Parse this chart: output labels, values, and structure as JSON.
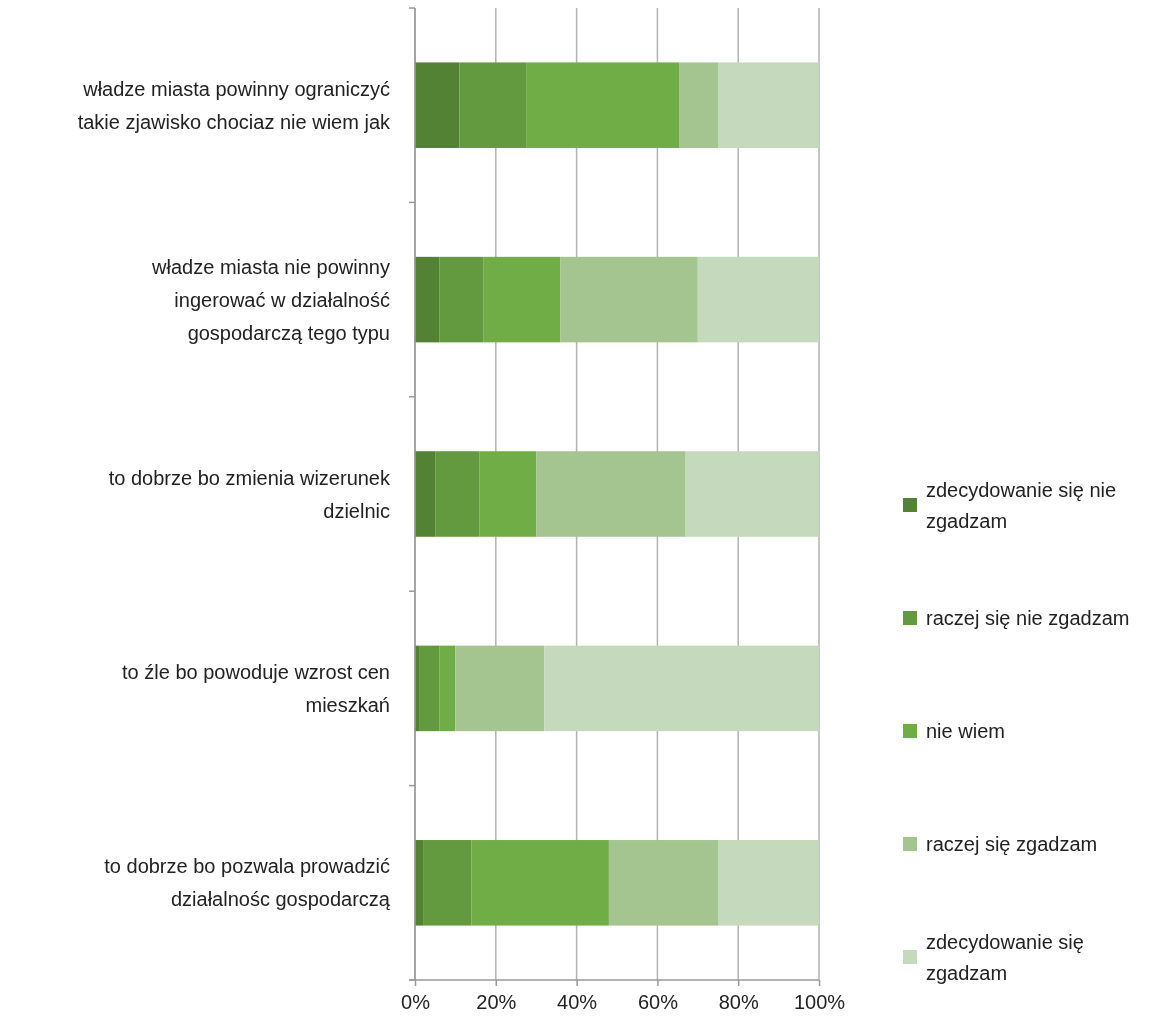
{
  "chart_data": {
    "type": "bar",
    "orientation": "horizontal",
    "stacked": true,
    "categories": [
      "władze miasta powinny ograniczyć takie zjawisko chociaz nie wiem jak",
      "władze miasta nie powinny ingerować w działalność gospodarczą tego typu",
      "to dobrze bo zmienia wizerunek dzielnic",
      "to źle bo powoduje wzrost cen mieszkań",
      "to dobrze bo pozwala prowadzić działalnośc gospodarczą"
    ],
    "series": [
      {
        "name": "zdecydowanie się nie zgadzam",
        "color": "#548235",
        "values": [
          11,
          6,
          5,
          1,
          2
        ]
      },
      {
        "name": "raczej się nie zgadzam",
        "color": "#63993f",
        "values": [
          16.5,
          11,
          11,
          5,
          12
        ]
      },
      {
        "name": "nie wiem",
        "color": "#70ad47",
        "values": [
          38,
          19,
          14,
          4,
          34
        ]
      },
      {
        "name": "raczej się zgadzam",
        "color": "#a5c590",
        "values": [
          9.5,
          34,
          37,
          22,
          27
        ]
      },
      {
        "name": "zdecydowanie się zgadzam",
        "color": "#c5d9bc",
        "values": [
          25,
          30,
          33,
          68,
          25
        ]
      }
    ],
    "xlim": [
      0,
      100
    ],
    "xticks": [
      {
        "value": 0,
        "label": "0%"
      },
      {
        "value": 20,
        "label": "20%"
      },
      {
        "value": 40,
        "label": "40%"
      },
      {
        "value": 60,
        "label": "60%"
      },
      {
        "value": 80,
        "label": "80%"
      },
      {
        "value": 100,
        "label": "100%"
      }
    ],
    "grid": "x",
    "legend": "right"
  }
}
